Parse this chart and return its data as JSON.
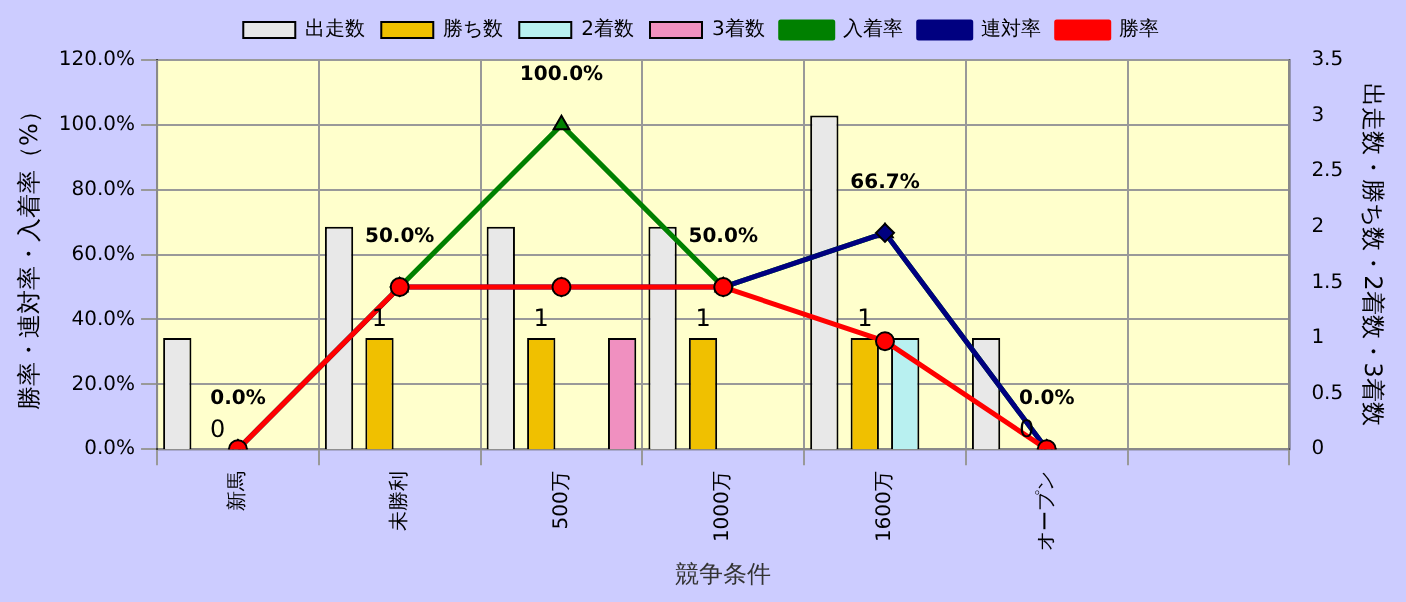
{
  "chart_data": {
    "type": "bar",
    "xlabel": "競争条件",
    "ylabel": "勝率・連対率・入着率（%）",
    "y2label": "出走数・勝ち数・2着数・3着数",
    "categories": [
      "新馬",
      "未勝利",
      "500万",
      "1000万",
      "1600万",
      "オープン",
      null
    ],
    "series": [
      {
        "name": "出走数",
        "axis": "y2",
        "color": "#e8e8e8",
        "values": [
          1,
          2,
          2,
          2,
          3,
          1,
          null
        ]
      },
      {
        "name": "勝ち数",
        "axis": "y2",
        "color": "#f0c000",
        "values": [
          0,
          1,
          1,
          1,
          1,
          0,
          null
        ],
        "value_labels": [
          "0",
          "1",
          "1",
          "1",
          "1",
          "0",
          null
        ]
      },
      {
        "name": "2着数",
        "axis": "y2",
        "color": "#b8f0f0",
        "values": [
          0,
          0,
          0,
          0,
          1,
          0,
          null
        ]
      },
      {
        "name": "3着数",
        "axis": "y2",
        "color": "#f090c0",
        "values": [
          0,
          0,
          1,
          0,
          0,
          0,
          null
        ]
      },
      {
        "name": "入着率",
        "type": "line",
        "marker": "triangle",
        "color": "#008000",
        "values": [
          0,
          50,
          100,
          50,
          66.7,
          0,
          null
        ],
        "value_labels": [
          "0.0%",
          "50.0%",
          "100.0%",
          "50.0%",
          "66.7%",
          "0.0%",
          null
        ]
      },
      {
        "name": "連対率",
        "type": "line",
        "marker": "diamond",
        "color": "#000080",
        "values": [
          0,
          50,
          50,
          50,
          66.7,
          0,
          null
        ]
      },
      {
        "name": "勝率",
        "type": "line",
        "marker": "circle",
        "color": "#ff0000",
        "values": [
          0,
          50,
          50,
          50,
          33.3,
          0,
          null
        ]
      }
    ],
    "ylim": [
      0,
      120
    ],
    "yticks": [
      {
        "value": 0,
        "label": "0.0%"
      },
      {
        "value": 20,
        "label": "20.0%"
      },
      {
        "value": 40,
        "label": "40.0%"
      },
      {
        "value": 60,
        "label": "60.0%"
      },
      {
        "value": 80,
        "label": "80.0%"
      },
      {
        "value": 100,
        "label": "100.0%"
      },
      {
        "value": 120,
        "label": "120.0%"
      }
    ],
    "y2lim": [
      0,
      3.5
    ],
    "y2ticks": [
      0,
      0.5,
      1,
      1.5,
      2,
      2.5,
      3,
      3.5
    ],
    "grid": true,
    "legend": "top"
  }
}
